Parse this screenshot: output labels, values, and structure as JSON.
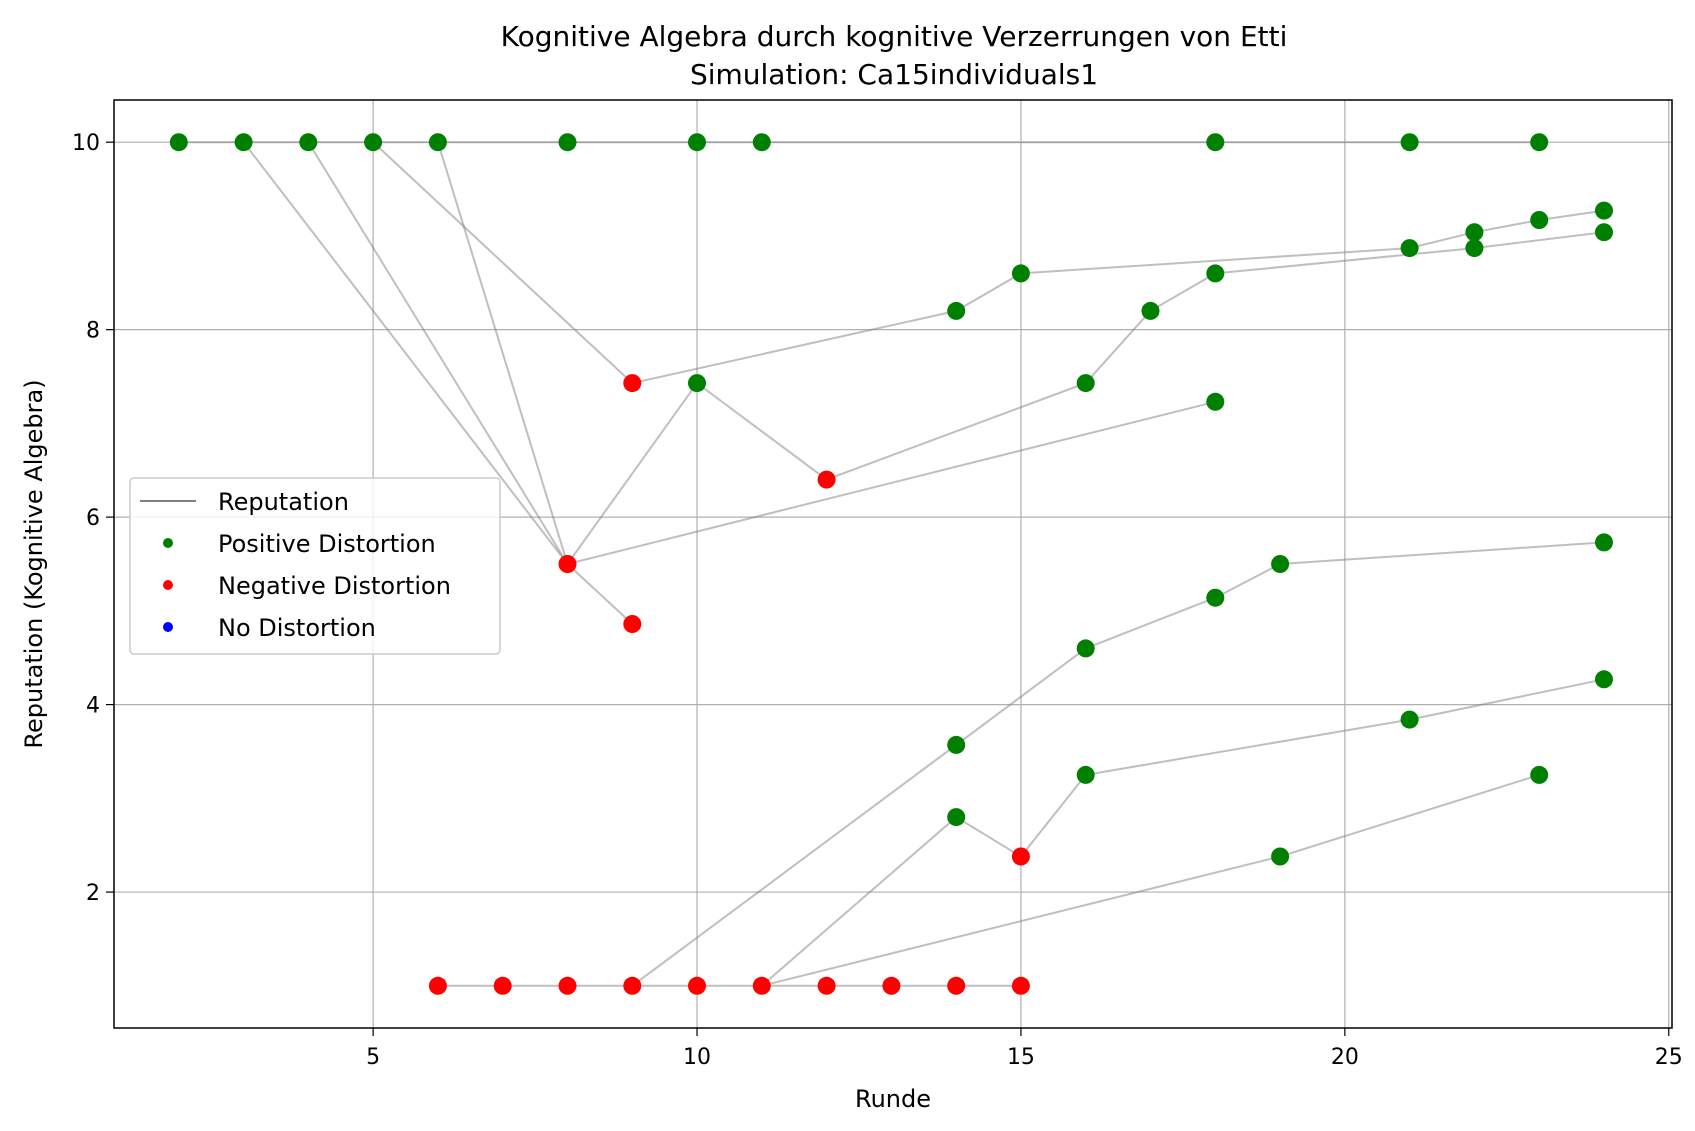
{
  "chart_data": {
    "type": "scatter",
    "title": "Kognitive Algebra durch kognitive Verzerrungen von Etti",
    "subtitle": "Simulation: Ca15individuals1",
    "xlabel": "Runde",
    "ylabel": "Reputation (Kognitive Algebra)",
    "xlim": [
      1.0,
      25.05
    ],
    "ylim": [
      0.55,
      10.45
    ],
    "xticks": [
      5,
      10,
      15,
      20,
      25
    ],
    "yticks": [
      2,
      4,
      6,
      8,
      10
    ],
    "grid": true,
    "legend_position": "center-left",
    "legend": [
      {
        "label": "Reputation",
        "kind": "line",
        "color": "#808080"
      },
      {
        "label": "Positive Distortion",
        "kind": "marker",
        "color": "#008000"
      },
      {
        "label": "Negative Distortion",
        "kind": "marker",
        "color": "#ff0000"
      },
      {
        "label": "No Distortion",
        "kind": "marker",
        "color": "#0000ff"
      }
    ],
    "colors": {
      "positive": "#008000",
      "negative": "#ff0000",
      "none": "#0000ff",
      "reputation": "#808080"
    },
    "reputation_lines": [
      [
        [
          2,
          10
        ],
        [
          3,
          10
        ],
        [
          4,
          10
        ],
        [
          5,
          10
        ],
        [
          6,
          10
        ],
        [
          8,
          10
        ],
        [
          10,
          10
        ],
        [
          11,
          10
        ],
        [
          18,
          10
        ],
        [
          21,
          10
        ],
        [
          23,
          10
        ]
      ],
      [
        [
          3,
          10
        ],
        [
          8,
          5.5
        ]
      ],
      [
        [
          4,
          10
        ],
        [
          8,
          5.5
        ]
      ],
      [
        [
          6,
          10
        ],
        [
          8,
          5.5
        ]
      ],
      [
        [
          5,
          10
        ],
        [
          9,
          7.43
        ],
        [
          14,
          8.2
        ],
        [
          15,
          8.6
        ],
        [
          21,
          8.87
        ],
        [
          22,
          9.04
        ],
        [
          23,
          9.17
        ],
        [
          24,
          9.27
        ]
      ],
      [
        [
          8,
          5.5
        ],
        [
          9,
          4.86
        ]
      ],
      [
        [
          8,
          5.5
        ],
        [
          10,
          7.43
        ],
        [
          12,
          6.4
        ],
        [
          16,
          7.43
        ],
        [
          17,
          8.2
        ],
        [
          18,
          8.6
        ],
        [
          22,
          8.87
        ],
        [
          24,
          9.04
        ]
      ],
      [
        [
          8,
          5.5
        ],
        [
          18,
          7.23
        ]
      ],
      [
        [
          6,
          1
        ],
        [
          7,
          1
        ],
        [
          8,
          1
        ],
        [
          9,
          1
        ],
        [
          10,
          1
        ],
        [
          11,
          1
        ],
        [
          12,
          1
        ],
        [
          13,
          1
        ],
        [
          14,
          1
        ],
        [
          15,
          1
        ]
      ],
      [
        [
          9,
          1
        ],
        [
          14,
          3.57
        ],
        [
          16,
          4.6
        ],
        [
          18,
          5.14
        ],
        [
          19,
          5.5
        ],
        [
          24,
          5.73
        ]
      ],
      [
        [
          11,
          1
        ],
        [
          14,
          2.8
        ],
        [
          15,
          2.38
        ],
        [
          16,
          3.25
        ],
        [
          21,
          3.84
        ],
        [
          24,
          4.27
        ]
      ],
      [
        [
          11,
          1
        ],
        [
          19,
          2.38
        ],
        [
          23,
          3.25
        ]
      ]
    ],
    "points": [
      {
        "x": 2,
        "y": 10,
        "d": "positive"
      },
      {
        "x": 3,
        "y": 10,
        "d": "positive"
      },
      {
        "x": 4,
        "y": 10,
        "d": "positive"
      },
      {
        "x": 5,
        "y": 10,
        "d": "positive"
      },
      {
        "x": 6,
        "y": 10,
        "d": "positive"
      },
      {
        "x": 8,
        "y": 10,
        "d": "positive"
      },
      {
        "x": 10,
        "y": 10,
        "d": "positive"
      },
      {
        "x": 11,
        "y": 10,
        "d": "positive"
      },
      {
        "x": 18,
        "y": 10,
        "d": "positive"
      },
      {
        "x": 21,
        "y": 10,
        "d": "positive"
      },
      {
        "x": 23,
        "y": 10,
        "d": "positive"
      },
      {
        "x": 8,
        "y": 5.5,
        "d": "negative"
      },
      {
        "x": 9,
        "y": 7.43,
        "d": "negative"
      },
      {
        "x": 9,
        "y": 4.86,
        "d": "negative"
      },
      {
        "x": 10,
        "y": 7.43,
        "d": "positive"
      },
      {
        "x": 12,
        "y": 6.4,
        "d": "negative"
      },
      {
        "x": 14,
        "y": 8.2,
        "d": "positive"
      },
      {
        "x": 15,
        "y": 8.6,
        "d": "positive"
      },
      {
        "x": 16,
        "y": 7.43,
        "d": "positive"
      },
      {
        "x": 17,
        "y": 8.2,
        "d": "positive"
      },
      {
        "x": 18,
        "y": 8.6,
        "d": "positive"
      },
      {
        "x": 18,
        "y": 7.23,
        "d": "positive"
      },
      {
        "x": 21,
        "y": 8.87,
        "d": "positive"
      },
      {
        "x": 22,
        "y": 9.04,
        "d": "positive"
      },
      {
        "x": 22,
        "y": 8.87,
        "d": "positive"
      },
      {
        "x": 23,
        "y": 9.17,
        "d": "positive"
      },
      {
        "x": 24,
        "y": 9.27,
        "d": "positive"
      },
      {
        "x": 24,
        "y": 9.04,
        "d": "positive"
      },
      {
        "x": 6,
        "y": 1,
        "d": "negative"
      },
      {
        "x": 7,
        "y": 1,
        "d": "negative"
      },
      {
        "x": 8,
        "y": 1,
        "d": "negative"
      },
      {
        "x": 9,
        "y": 1,
        "d": "negative"
      },
      {
        "x": 10,
        "y": 1,
        "d": "negative"
      },
      {
        "x": 11,
        "y": 1,
        "d": "negative"
      },
      {
        "x": 12,
        "y": 1,
        "d": "negative"
      },
      {
        "x": 13,
        "y": 1,
        "d": "negative"
      },
      {
        "x": 14,
        "y": 1,
        "d": "negative"
      },
      {
        "x": 15,
        "y": 1,
        "d": "negative"
      },
      {
        "x": 14,
        "y": 3.57,
        "d": "positive"
      },
      {
        "x": 16,
        "y": 4.6,
        "d": "positive"
      },
      {
        "x": 18,
        "y": 5.14,
        "d": "positive"
      },
      {
        "x": 19,
        "y": 5.5,
        "d": "positive"
      },
      {
        "x": 24,
        "y": 5.73,
        "d": "positive"
      },
      {
        "x": 14,
        "y": 2.8,
        "d": "positive"
      },
      {
        "x": 15,
        "y": 2.38,
        "d": "negative"
      },
      {
        "x": 16,
        "y": 3.25,
        "d": "positive"
      },
      {
        "x": 21,
        "y": 3.84,
        "d": "positive"
      },
      {
        "x": 24,
        "y": 4.27,
        "d": "positive"
      },
      {
        "x": 19,
        "y": 2.38,
        "d": "positive"
      },
      {
        "x": 23,
        "y": 3.25,
        "d": "positive"
      }
    ]
  }
}
